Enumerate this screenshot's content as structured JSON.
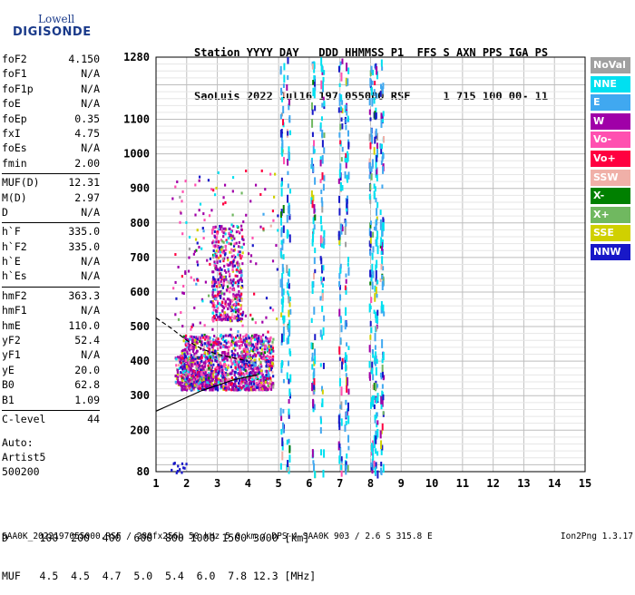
{
  "logo": {
    "line1": "Lowell",
    "line2": "DIGISONDE"
  },
  "header": {
    "line1": "Station YYYY DAY   DDD HHMMSS P1  FFS S AXN PPS IGA PS",
    "line2": "SaoLuis 2022 Jul16 197 055000 RSF     1 715 100 00- 11"
  },
  "params": [
    {
      "k": "foF2",
      "v": "4.150"
    },
    {
      "k": "foF1",
      "v": "N/A"
    },
    {
      "k": "foF1p",
      "v": "N/A"
    },
    {
      "k": "foE",
      "v": "N/A"
    },
    {
      "k": "foEp",
      "v": "0.35"
    },
    {
      "k": "fxI",
      "v": "4.75"
    },
    {
      "k": "foEs",
      "v": "N/A"
    },
    {
      "k": "fmin",
      "v": "2.00"
    },
    {
      "k": "MUF(D)",
      "v": "12.31"
    },
    {
      "k": "M(D)",
      "v": "2.97"
    },
    {
      "k": "D",
      "v": "N/A"
    },
    {
      "k": "h`F",
      "v": "335.0"
    },
    {
      "k": "h`F2",
      "v": "335.0"
    },
    {
      "k": "h`E",
      "v": "N/A"
    },
    {
      "k": "h`Es",
      "v": "N/A"
    },
    {
      "k": "hmF2",
      "v": "363.3"
    },
    {
      "k": "hmF1",
      "v": "N/A"
    },
    {
      "k": "hmE",
      "v": "110.0"
    },
    {
      "k": "yF2",
      "v": "52.4"
    },
    {
      "k": "yF1",
      "v": "N/A"
    },
    {
      "k": "yE",
      "v": "20.0"
    },
    {
      "k": "B0",
      "v": "62.8"
    },
    {
      "k": "B1",
      "v": "1.09"
    },
    {
      "k": "C-level",
      "v": "44"
    }
  ],
  "auto": {
    "line1": "Auto:",
    "line2": "Artist5",
    "line3": "500200"
  },
  "legend": [
    {
      "label": "NoVal",
      "color": "#a0a0a0"
    },
    {
      "label": "NNE",
      "color": "#00e0f0"
    },
    {
      "label": "E",
      "color": "#40a8f0"
    },
    {
      "label": "W",
      "color": "#a000a8"
    },
    {
      "label": "Vo-",
      "color": "#ff50b0"
    },
    {
      "label": "Vo+",
      "color": "#ff0040"
    },
    {
      "label": "SSW",
      "color": "#f0b0a8"
    },
    {
      "label": "X-",
      "color": "#008000"
    },
    {
      "label": "X+",
      "color": "#70b860"
    },
    {
      "label": "SSE",
      "color": "#d0d000"
    },
    {
      "label": "NNW",
      "color": "#1818c8"
    }
  ],
  "bottom": {
    "dline": "D     100  200  400  600  800 1000 1500 3000 [km]",
    "mline": "MUF   4.5  4.5  4.7  5.0  5.4  6.0  7.8 12.3 [MHz]"
  },
  "footer": {
    "left": "SAA0K_2022197055000.RSF / 280fx256h 50 kHz 5.0 km / DPS-4 SAA0K 903 / 2.6 S 315.8 E",
    "right": "Ion2Png 1.3.17"
  },
  "chart_data": {
    "type": "scatter",
    "xlabel": "",
    "ylabel": "",
    "xlim": [
      1,
      15
    ],
    "ylim": [
      80,
      1280
    ],
    "x_ticks": [
      1,
      2,
      3,
      4,
      5,
      6,
      7,
      8,
      9,
      10,
      11,
      12,
      13,
      14,
      15
    ],
    "y_ticks": [
      80,
      200,
      300,
      400,
      500,
      600,
      700,
      800,
      900,
      1000,
      1100,
      1280
    ],
    "grid": true,
    "legend_position": "right",
    "echo_clusters": [
      {
        "name": "F-trace",
        "f_range": [
          1.8,
          4.8
        ],
        "h_range": [
          320,
          480
        ]
      },
      {
        "name": "F-trace-upper",
        "f_range": [
          2.8,
          3.8
        ],
        "h_range": [
          520,
          800
        ]
      },
      {
        "name": "F-trace-low",
        "f_range": [
          1.6,
          2.8
        ],
        "h_range": [
          330,
          420
        ]
      }
    ],
    "interference_lines_mhz": [
      5.1,
      5.3,
      6.1,
      6.4,
      7.0,
      7.2,
      8.0,
      8.15,
      8.35
    ],
    "model_curves": [
      {
        "name": "ordinary-profile",
        "points": [
          [
            1.0,
            255
          ],
          [
            1.5,
            275
          ],
          [
            2.0,
            295
          ],
          [
            2.5,
            315
          ],
          [
            3.0,
            330
          ],
          [
            3.5,
            345
          ],
          [
            4.0,
            355
          ],
          [
            4.3,
            360
          ]
        ]
      },
      {
        "name": "dashed-profile",
        "points": [
          [
            1.0,
            525
          ],
          [
            1.5,
            495
          ],
          [
            2.0,
            460
          ],
          [
            2.5,
            435
          ],
          [
            3.0,
            420
          ],
          [
            3.5,
            410
          ],
          [
            4.0,
            400
          ]
        ]
      }
    ]
  }
}
